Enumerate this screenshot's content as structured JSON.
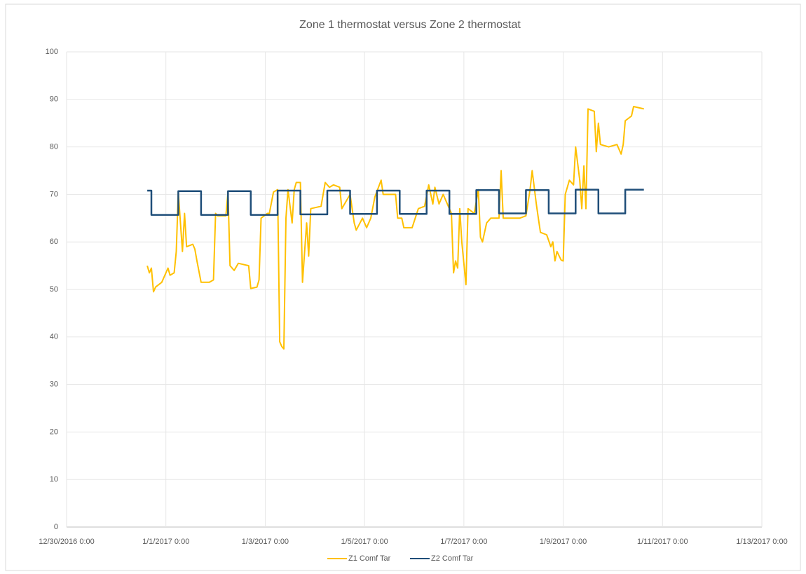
{
  "chart_data": {
    "type": "line",
    "title": "Zone 1 thermostat versus Zone 2 thermostat",
    "xlim": [
      "12/30/2016 0:00",
      "1/13/2017 0:00"
    ],
    "xticks": [
      "12/30/2016 0:00",
      "1/1/2017 0:00",
      "1/3/2017 0:00",
      "1/5/2017 0:00",
      "1/7/2017 0:00",
      "1/9/2017 0:00",
      "1/11/2017 0:00",
      "1/13/2017 0:00"
    ],
    "ylim": [
      0,
      100
    ],
    "yticks": [
      0,
      10,
      20,
      30,
      40,
      50,
      60,
      70,
      80,
      90,
      100
    ],
    "grid": true,
    "legend": "bottom",
    "series": [
      {
        "name": "Z1 Comf Tar",
        "color": "#ffc000",
        "x": [
          "12/31/2016 15:00",
          "12/31/2016 16:00",
          "12/31/2016 17:00",
          "12/31/2016 18:00",
          "12/31/2016 19:00",
          "12/31/2016 22:00",
          "1/1/2017 1:00",
          "1/1/2017 2:00",
          "1/1/2017 4:00",
          "1/1/2017 5:00",
          "1/1/2017 6:00",
          "1/1/2017 8:00",
          "1/1/2017 9:00",
          "1/1/2017 10:00",
          "1/1/2017 13:00",
          "1/1/2017 14:00",
          "1/1/2017 15:00",
          "1/1/2017 17:00",
          "1/1/2017 21:00",
          "1/1/2017 23:00",
          "1/2/2017 0:00",
          "1/2/2017 1:00",
          "1/2/2017 5:00",
          "1/2/2017 6:00",
          "1/2/2017 7:00",
          "1/2/2017 9:00",
          "1/2/2017 11:00",
          "1/2/2017 16:00",
          "1/2/2017 17:00",
          "1/2/2017 20:00",
          "1/2/2017 21:00",
          "1/2/2017 22:00",
          "1/3/2017 1:00",
          "1/3/2017 2:00",
          "1/3/2017 4:00",
          "1/3/2017 6:00",
          "1/3/2017 7:00",
          "1/3/2017 8:00",
          "1/3/2017 9:00",
          "1/3/2017 10:00",
          "1/3/2017 11:00",
          "1/3/2017 13:00",
          "1/3/2017 14:00",
          "1/3/2017 15:00",
          "1/3/2017 17:00",
          "1/3/2017 18:00",
          "1/3/2017 20:00",
          "1/3/2017 21:00",
          "1/3/2017 22:00",
          "1/4/2017 3:00",
          "1/4/2017 5:00",
          "1/4/2017 7:00",
          "1/4/2017 9:00",
          "1/4/2017 12:00",
          "1/4/2017 13:00",
          "1/4/2017 17:00",
          "1/4/2017 19:00",
          "1/4/2017 20:00",
          "1/4/2017 23:00",
          "1/5/2017 1:00",
          "1/5/2017 3:00",
          "1/5/2017 5:00",
          "1/5/2017 8:00",
          "1/5/2017 9:00",
          "1/5/2017 13:00",
          "1/5/2017 15:00",
          "1/5/2017 16:00",
          "1/5/2017 18:00",
          "1/5/2017 19:00",
          "1/5/2017 23:00",
          "1/6/2017 2:00",
          "1/6/2017 5:00",
          "1/6/2017 7:00",
          "1/6/2017 9:00",
          "1/6/2017 10:00",
          "1/6/2017 12:00",
          "1/6/2017 14:00",
          "1/6/2017 18:00",
          "1/6/2017 19:00",
          "1/6/2017 20:00",
          "1/6/2017 21:00",
          "1/6/2017 22:00",
          "1/6/2017 23:00",
          "1/7/2017 1:00",
          "1/7/2017 2:00",
          "1/7/2017 5:00",
          "1/7/2017 7:00",
          "1/7/2017 8:00",
          "1/7/2017 9:00",
          "1/7/2017 11:00",
          "1/7/2017 13:00",
          "1/7/2017 17:00",
          "1/7/2017 18:00",
          "1/7/2017 19:00",
          "1/8/2017 3:00",
          "1/8/2017 6:00",
          "1/8/2017 8:00",
          "1/8/2017 9:00",
          "1/8/2017 11:00",
          "1/8/2017 12:00",
          "1/8/2017 13:00",
          "1/8/2017 16:00",
          "1/8/2017 18:00",
          "1/8/2017 19:00",
          "1/8/2017 20:00",
          "1/8/2017 21:00",
          "1/8/2017 23:00",
          "1/9/2017 0:00",
          "1/9/2017 1:00",
          "1/9/2017 3:00",
          "1/9/2017 5:00",
          "1/9/2017 6:00",
          "1/9/2017 8:00",
          "1/9/2017 9:00",
          "1/9/2017 10:00",
          "1/9/2017 11:00",
          "1/9/2017 12:00",
          "1/9/2017 15:00",
          "1/9/2017 16:00",
          "1/9/2017 17:00",
          "1/9/2017 18:00",
          "1/9/2017 22:00",
          "1/10/2017 2:00",
          "1/10/2017 4:00",
          "1/10/2017 5:00",
          "1/10/2017 6:00",
          "1/10/2017 9:00",
          "1/10/2017 10:00",
          "1/10/2017 15:00"
        ],
        "values": [
          55,
          53.5,
          54.5,
          49.5,
          50.5,
          51.5,
          54.5,
          53,
          53.5,
          58,
          70.5,
          58,
          66,
          59,
          59.5,
          58.5,
          56,
          51.5,
          51.5,
          52,
          66,
          65.5,
          65.5,
          70.5,
          55,
          54,
          55.5,
          55,
          50.2,
          50.5,
          52,
          65,
          66,
          66,
          70.5,
          71,
          39,
          38,
          37.5,
          65,
          71,
          64,
          71,
          72.5,
          72.5,
          51.5,
          64,
          57,
          67,
          67.5,
          72.5,
          71.5,
          72,
          71.5,
          67,
          70,
          64,
          62.5,
          65,
          63,
          65,
          69.5,
          73,
          70,
          70,
          70,
          65,
          65,
          63,
          63,
          67,
          67.5,
          72,
          68,
          71.5,
          68,
          70,
          66,
          53.5,
          56,
          54.5,
          67,
          60,
          51,
          67,
          66,
          71,
          61,
          60,
          64,
          65,
          65,
          75,
          65,
          65,
          65.5,
          71,
          75,
          68,
          65,
          62,
          61.5,
          59,
          60,
          56,
          58,
          56.2,
          56,
          70,
          73,
          72,
          80,
          73,
          67,
          76,
          67,
          88,
          87.5,
          79,
          85,
          80.5,
          80,
          80.5,
          78.5,
          80.5,
          85.5,
          86.5,
          88.5,
          88
        ]
      },
      {
        "name": "Z2 Comf Tar",
        "color": "#1f4e79",
        "x": [
          "12/31/2016 15:00",
          "12/31/2016 17:00",
          "12/31/2016 17:00",
          "1/1/2017 6:00",
          "1/1/2017 6:00",
          "1/1/2017 17:00",
          "1/1/2017 17:00",
          "1/2/2017 6:00",
          "1/2/2017 6:00",
          "1/2/2017 17:00",
          "1/2/2017 17:00",
          "1/3/2017 6:00",
          "1/3/2017 6:00",
          "1/3/2017 17:00",
          "1/3/2017 17:00",
          "1/4/2017 6:00",
          "1/4/2017 6:00",
          "1/4/2017 17:00",
          "1/4/2017 17:00",
          "1/5/2017 6:00",
          "1/5/2017 6:00",
          "1/5/2017 17:00",
          "1/5/2017 17:00",
          "1/6/2017 6:00",
          "1/6/2017 6:00",
          "1/6/2017 17:00",
          "1/6/2017 17:00",
          "1/7/2017 6:00",
          "1/7/2017 6:00",
          "1/7/2017 17:00",
          "1/7/2017 17:00",
          "1/8/2017 6:00",
          "1/8/2017 6:00",
          "1/8/2017 17:00",
          "1/8/2017 17:00",
          "1/9/2017 6:00",
          "1/9/2017 6:00",
          "1/9/2017 17:00",
          "1/9/2017 17:00",
          "1/10/2017 6:00",
          "1/10/2017 6:00",
          "1/10/2017 15:00"
        ],
        "values": [
          70.8,
          70.8,
          65.7,
          65.7,
          70.7,
          70.7,
          65.7,
          65.7,
          70.7,
          70.7,
          65.7,
          65.7,
          70.8,
          70.8,
          65.8,
          65.8,
          70.8,
          70.8,
          65.9,
          65.9,
          70.8,
          70.8,
          65.9,
          65.9,
          70.8,
          70.8,
          65.9,
          65.9,
          70.9,
          70.9,
          66,
          66,
          70.9,
          70.9,
          66,
          66,
          71,
          71,
          66,
          66,
          71,
          71
        ]
      }
    ]
  }
}
